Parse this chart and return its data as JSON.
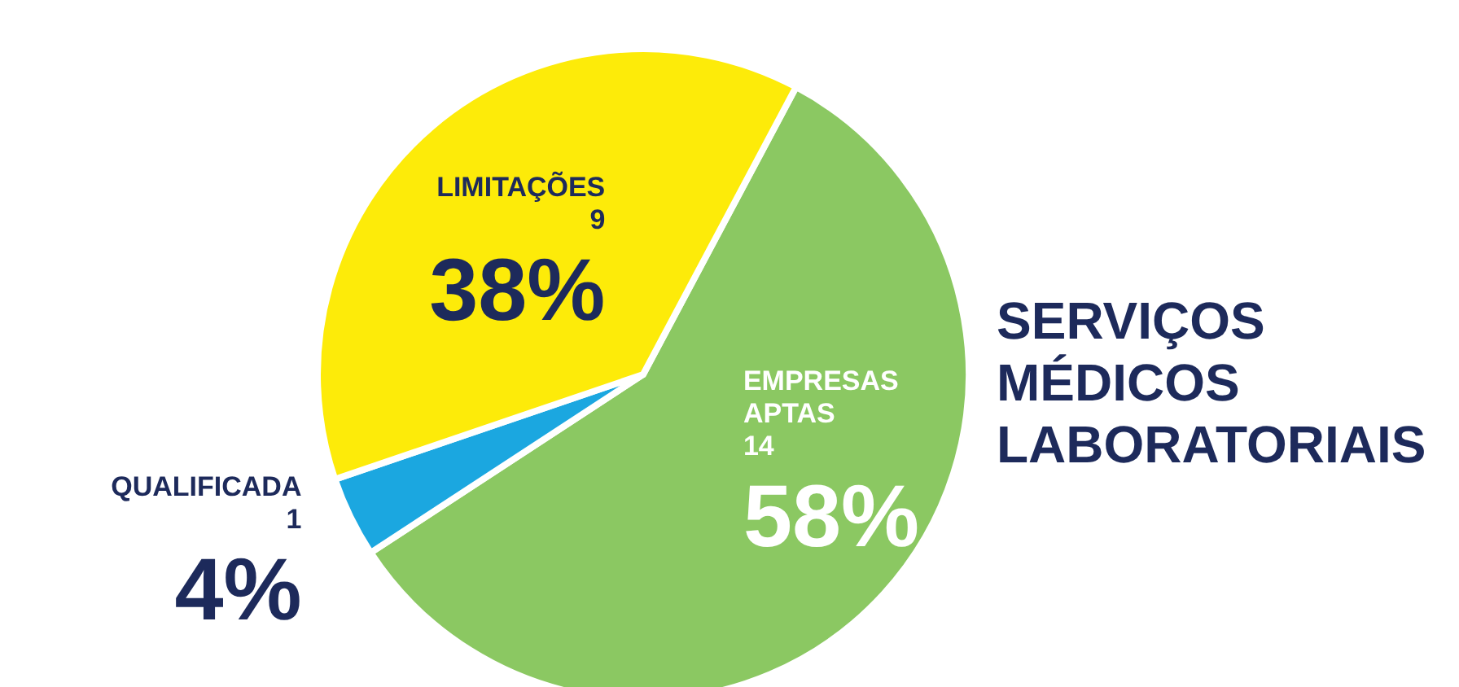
{
  "chart_data": {
    "type": "pie",
    "title": "SERVIÇOS MÉDICOS LABORATORIAIS",
    "categories": [
      "EMPRESAS APTAS",
      "QUALIFICADA",
      "LIMITAÇÕES"
    ],
    "values": [
      58,
      4,
      38
    ],
    "value_labels": [
      "58%",
      "4%",
      "38%"
    ],
    "annotations": [
      {
        "text": "14",
        "x": "EMPRESAS APTAS"
      },
      {
        "text": "1",
        "x": "QUALIFICADA"
      },
      {
        "text": "9",
        "x": "LIMITAÇÕES"
      }
    ],
    "colors": [
      "#8bc862",
      "#1ba7e0",
      "#fdeb09"
    ]
  }
}
